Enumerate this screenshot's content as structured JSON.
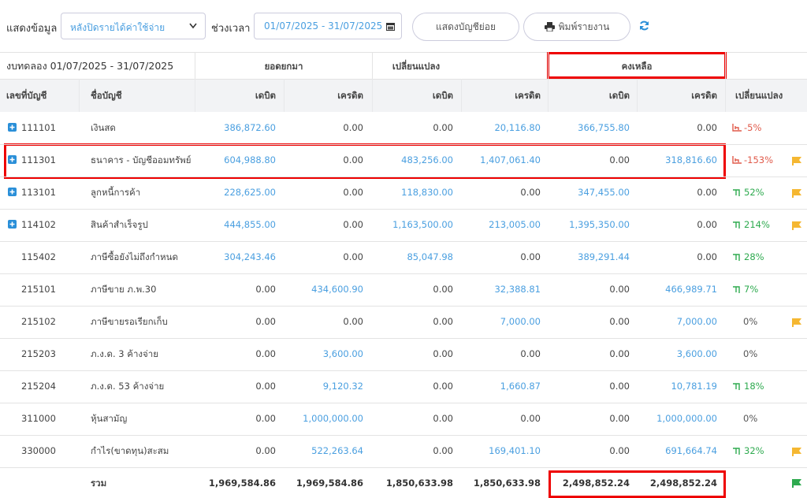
{
  "toolbar": {
    "show_label": "แสดงข้อมูล",
    "show_value": "หลังปิดรายได้ค่าใช้จ่าย",
    "period_label": "ช่วงเวลา",
    "period_value": "01/07/2025 - 31/07/2025",
    "sub_accounts_button": "แสดงบัญชีย่อย",
    "print_button": "พิมพ์รายงาน"
  },
  "table": {
    "title": "งบทดลอง 01/07/2025 - 31/07/2025",
    "groups": [
      "ยอดยกมา",
      "เปลี่ยนแปลง",
      "คงเหลือ"
    ],
    "columns": [
      "เลขที่บัญชี",
      "ชื่อบัญชี",
      "เดบิต",
      "เครดิต",
      "เดบิต",
      "เครดิต",
      "เดบิต",
      "เครดิต",
      "เปลี่ยนแปลง"
    ],
    "rows": [
      {
        "code": "111101",
        "name": "เงินสด",
        "amounts": [
          "386,872.60",
          "0.00",
          "0.00",
          "20,116.80",
          "366,755.80",
          "0.00"
        ],
        "change": "-5%",
        "expandable": true,
        "flag": null
      },
      {
        "code": "111301",
        "name": "ธนาคาร - บัญชีออมทรัพย์",
        "amounts": [
          "604,988.80",
          "0.00",
          "483,256.00",
          "1,407,061.40",
          "0.00",
          "318,816.60"
        ],
        "change": "-153%",
        "expandable": true,
        "flag": "#f5b731"
      },
      {
        "code": "113101",
        "name": "ลูกหนี้การค้า",
        "amounts": [
          "228,625.00",
          "0.00",
          "118,830.00",
          "0.00",
          "347,455.00",
          "0.00"
        ],
        "change": "52%",
        "expandable": true,
        "flag": "#f5b731"
      },
      {
        "code": "114102",
        "name": "สินค้าสำเร็จรูป",
        "amounts": [
          "444,855.00",
          "0.00",
          "1,163,500.00",
          "213,005.00",
          "1,395,350.00",
          "0.00"
        ],
        "change": "214%",
        "expandable": true,
        "flag": "#f5b731"
      },
      {
        "code": "115402",
        "name": "ภาษีซื้อยังไม่ถึงกำหนด",
        "amounts": [
          "304,243.46",
          "0.00",
          "85,047.98",
          "0.00",
          "389,291.44",
          "0.00"
        ],
        "change": "28%",
        "expandable": false,
        "flag": null
      },
      {
        "code": "215101",
        "name": "ภาษีขาย ภ.พ.30",
        "amounts": [
          "0.00",
          "434,600.90",
          "0.00",
          "32,388.81",
          "0.00",
          "466,989.71"
        ],
        "change": "7%",
        "expandable": false,
        "flag": null
      },
      {
        "code": "215102",
        "name": "ภาษีขายรอเรียกเก็บ",
        "amounts": [
          "0.00",
          "0.00",
          "0.00",
          "7,000.00",
          "0.00",
          "7,000.00"
        ],
        "change": "0%",
        "expandable": false,
        "flag": "#f5b731"
      },
      {
        "code": "215203",
        "name": "ภ.ง.ด. 3 ค้างจ่าย",
        "amounts": [
          "0.00",
          "3,600.00",
          "0.00",
          "0.00",
          "0.00",
          "3,600.00"
        ],
        "change": "0%",
        "expandable": false,
        "flag": null
      },
      {
        "code": "215204",
        "name": "ภ.ง.ด. 53 ค้างจ่าย",
        "amounts": [
          "0.00",
          "9,120.32",
          "0.00",
          "1,660.87",
          "0.00",
          "10,781.19"
        ],
        "change": "18%",
        "expandable": false,
        "flag": null
      },
      {
        "code": "311000",
        "name": "หุ้นสามัญ",
        "amounts": [
          "0.00",
          "1,000,000.00",
          "0.00",
          "0.00",
          "0.00",
          "1,000,000.00"
        ],
        "change": "0%",
        "expandable": false,
        "flag": null
      },
      {
        "code": "330000",
        "name": "กำไร(ขาดทุน)สะสม",
        "amounts": [
          "0.00",
          "522,263.64",
          "0.00",
          "169,401.10",
          "0.00",
          "691,664.74"
        ],
        "change": "32%",
        "expandable": false,
        "flag": "#f5b731"
      }
    ],
    "total": {
      "label": "รวม",
      "amounts": [
        "1,969,584.86",
        "1,969,584.86",
        "1,850,633.98",
        "1,850,633.98",
        "2,498,852.24",
        "2,498,852.24"
      ],
      "flag": "#2eaa4f"
    }
  }
}
